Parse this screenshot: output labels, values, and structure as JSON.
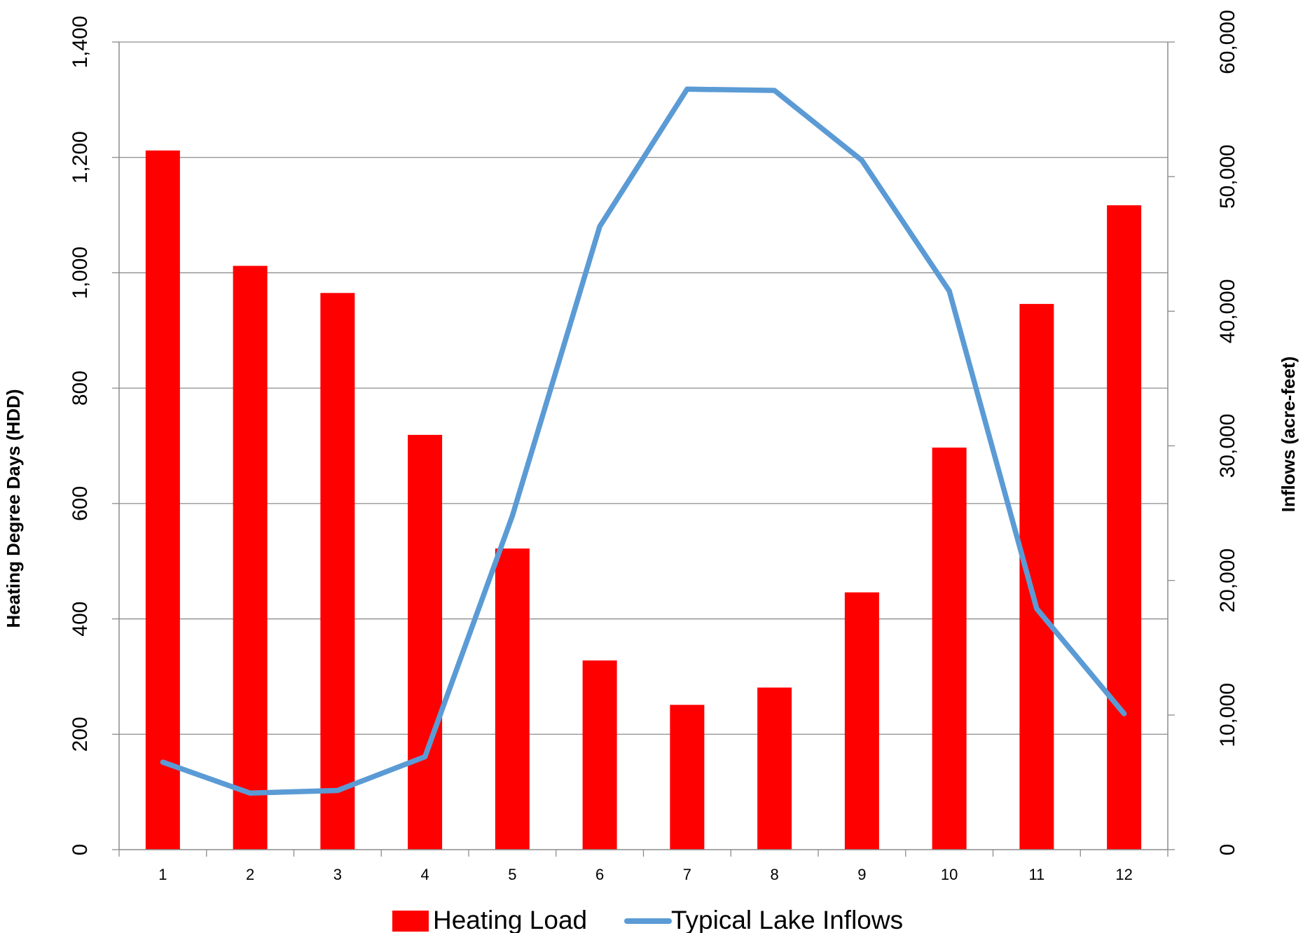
{
  "chart_data": {
    "type": "bar",
    "title": "",
    "categories": [
      "1",
      "2",
      "3",
      "4",
      "5",
      "6",
      "7",
      "8",
      "9",
      "10",
      "11",
      "12"
    ],
    "series": [
      {
        "name": "Heating Load",
        "type": "bar",
        "axis": "left",
        "color": "#ff0000",
        "values": [
          1212,
          1012,
          965,
          719,
          522,
          328,
          251,
          281,
          446,
          697,
          946,
          1117
        ]
      },
      {
        "name": "Typical Lake Inflows",
        "type": "line",
        "axis": "right",
        "color": "#5b9bd5",
        "values": [
          6500,
          4200,
          4400,
          6900,
          24800,
          46300,
          56500,
          56400,
          51200,
          41500,
          17900,
          10100
        ]
      }
    ],
    "y_left": {
      "label": "Heating Degree Days (HDD)",
      "min": 0,
      "max": 1400,
      "ticks": [
        "0",
        "200",
        "400",
        "600",
        "800",
        "1,000",
        "1,200",
        "1,400"
      ]
    },
    "y_right": {
      "label": "Inflows (acre-feet)",
      "min": 0,
      "max": 60000,
      "ticks": [
        "0",
        "10,000",
        "20,000",
        "30,000",
        "40,000",
        "50,000",
        "60,000"
      ]
    },
    "grid": "horizontal",
    "legend_position": "bottom"
  }
}
